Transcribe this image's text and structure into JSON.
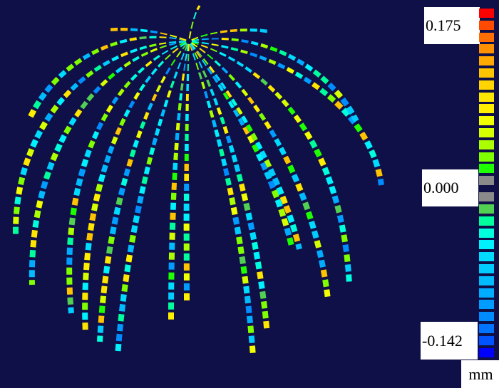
{
  "legend": {
    "max_label": "0.175",
    "mid_label": "0.000",
    "min_label": "-0.142",
    "unit": "mm",
    "colors": [
      "#ff0000",
      "#ff4a00",
      "#ff6e00",
      "#ff9000",
      "#ffa800",
      "#ffc400",
      "#ffd400",
      "#ffe600",
      "#fff000",
      "#f2ff00",
      "#d6ff00",
      "#aaff00",
      "#80ff00",
      "#1eff00",
      "#8a8a8a",
      "#8a8a8a",
      "#52d052",
      "#00ff9c",
      "#00ffdc",
      "#00f2ff",
      "#00dcff",
      "#00ccff",
      "#00bcff",
      "#00acff",
      "#009cff",
      "#008cff",
      "#0074ff",
      "#0054ff",
      "#0000ff"
    ]
  },
  "background": "#0f1048"
}
